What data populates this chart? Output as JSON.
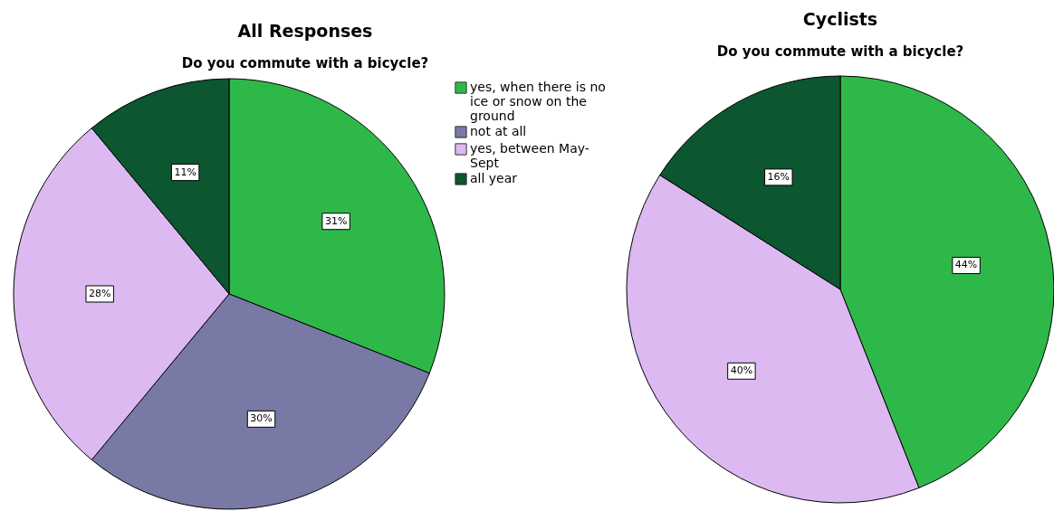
{
  "chart_data": [
    {
      "type": "pie",
      "title": "All Responses",
      "subtitle": "Do you commute with a bicycle?",
      "categories": [
        "yes, when there is no ice or snow on the ground",
        "not at all",
        "yes, between May-Sept",
        "all year"
      ],
      "values": [
        31,
        30,
        28,
        11
      ],
      "colors": [
        "#2fb84a",
        "#7979a6",
        "#dcb9f1",
        "#0c5630"
      ],
      "value_labels": [
        "31%",
        "30%",
        "28%",
        "11%"
      ],
      "legend": "right"
    },
    {
      "type": "pie",
      "title": "Cyclists",
      "subtitle": "Do you commute with a bicycle?",
      "categories": [
        null,
        null,
        null
      ],
      "values": [
        44,
        40,
        16
      ],
      "colors": [
        "#2fb84a",
        "#dcb9f1",
        "#0c5630"
      ],
      "value_labels": [
        "44%",
        "40%",
        "16%"
      ]
    }
  ]
}
